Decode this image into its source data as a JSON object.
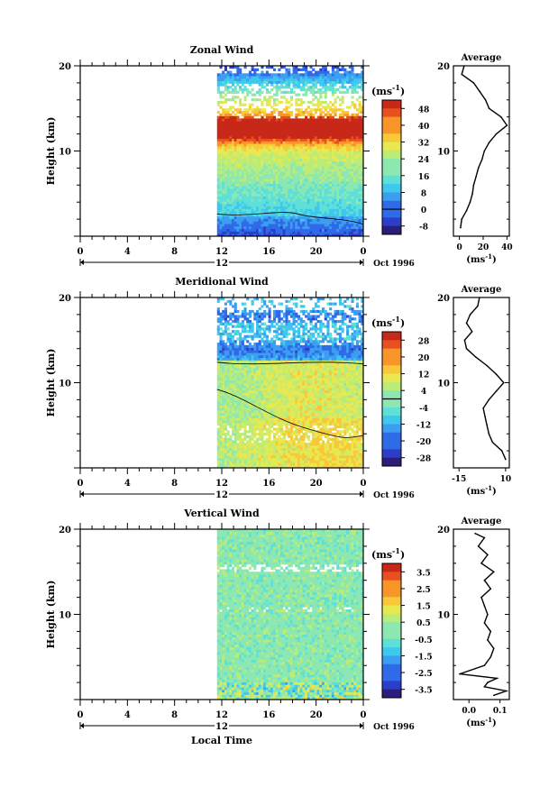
{
  "figure": {
    "xlabel": "Local Time",
    "date_label": "Oct 1996",
    "day_label": "12",
    "unit_label": "(ms",
    "unit_exp": "-1",
    "unit_close": ")",
    "ylabel": "Height (km)",
    "avg_title": "Average"
  },
  "chart_data": [
    {
      "type": "heatmap",
      "title": "Zonal Wind",
      "ylabel": "Height (km)",
      "xlabel": "Local Time",
      "x_ticks": [
        "0",
        "4",
        "8",
        "12",
        "16",
        "20",
        "0"
      ],
      "y_ticks": [
        "10",
        "20"
      ],
      "ylim": [
        0,
        20
      ],
      "data_start_hour": 11.6,
      "colorbar": {
        "ticks": [
          "48",
          "40",
          "32",
          "24",
          "16",
          "8",
          "0",
          "-8"
        ],
        "range": [
          -12,
          52
        ],
        "contour_level": 0
      },
      "profile": {
        "title": "Average",
        "x_ticks": [
          "0",
          "20",
          "40"
        ],
        "xlim": [
          -5,
          42
        ],
        "heights": [
          1,
          2,
          3,
          4,
          5,
          6,
          7,
          8,
          9,
          10,
          11,
          12,
          13,
          14,
          15,
          16,
          17,
          18,
          19,
          20
        ],
        "values": [
          1,
          2,
          6,
          9,
          11,
          12,
          14,
          16,
          19,
          21,
          25,
          31,
          40,
          35,
          25,
          22,
          17,
          12,
          2,
          4
        ]
      }
    },
    {
      "type": "heatmap",
      "title": "Meridional Wind",
      "ylabel": "Height (km)",
      "xlabel": "Local Time",
      "x_ticks": [
        "0",
        "4",
        "8",
        "12",
        "16",
        "20",
        "0"
      ],
      "y_ticks": [
        "10",
        "20"
      ],
      "ylim": [
        0,
        20
      ],
      "data_start_hour": 11.6,
      "colorbar": {
        "ticks": [
          "28",
          "20",
          "12",
          "4",
          "-4",
          "-12",
          "-20",
          "-28"
        ],
        "range": [
          -32,
          32
        ],
        "contour_level": 0
      },
      "profile": {
        "title": "Average",
        "x_ticks": [
          "-15",
          "10"
        ],
        "xlim": [
          -18,
          12
        ],
        "heights": [
          1,
          2,
          3,
          4,
          5,
          6,
          7,
          8,
          9,
          10,
          11,
          12,
          13,
          14,
          15,
          16,
          17,
          18,
          19,
          20
        ],
        "values": [
          10,
          8,
          3,
          1,
          0,
          -1,
          -2,
          1,
          5,
          9,
          5,
          0,
          -6,
          -11,
          -12,
          -8,
          -11,
          -9,
          -5,
          -4
        ]
      }
    },
    {
      "type": "heatmap",
      "title": "Vertical Wind",
      "ylabel": "Height (km)",
      "xlabel": "Local Time",
      "x_ticks": [
        "0",
        "4",
        "8",
        "12",
        "16",
        "20",
        "0"
      ],
      "y_ticks": [
        "10",
        "20"
      ],
      "ylim": [
        0,
        20
      ],
      "data_start_hour": 11.6,
      "colorbar": {
        "ticks": [
          "3.5",
          "2.5",
          "1.5",
          "0.5",
          "-0.5",
          "-1.5",
          "-2.5",
          "-3.5"
        ],
        "range": [
          -4,
          4
        ]
      },
      "profile": {
        "title": "Average",
        "x_ticks": [
          "0.0",
          "0.1"
        ],
        "xlim": [
          -0.05,
          0.13
        ],
        "heights": [
          0.5,
          1,
          1.5,
          2,
          2.5,
          3,
          4,
          5,
          6,
          7,
          8,
          9,
          10,
          11,
          12,
          13,
          14,
          15,
          16,
          17,
          18,
          19,
          19.5
        ],
        "values": [
          0.08,
          0.12,
          0.05,
          0.06,
          0.09,
          -0.03,
          0.05,
          0.07,
          0.08,
          0.06,
          0.07,
          0.05,
          0.06,
          0.05,
          0.04,
          0.07,
          0.05,
          0.08,
          0.04,
          0.06,
          0.03,
          0.05,
          0.02
        ]
      }
    }
  ]
}
